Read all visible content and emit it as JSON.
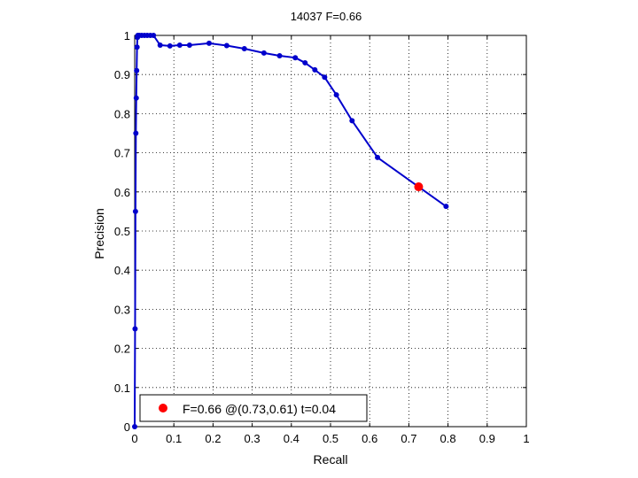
{
  "chart_data": {
    "type": "line",
    "title": "14037 F=0.66",
    "xlabel": "Recall",
    "ylabel": "Precision",
    "xlim": [
      0,
      1
    ],
    "ylim": [
      0,
      1
    ],
    "xticks": [
      "0",
      "0.1",
      "0.2",
      "0.3",
      "0.4",
      "0.5",
      "0.6",
      "0.7",
      "0.8",
      "0.9",
      "1"
    ],
    "yticks": [
      "0",
      "0.1",
      "0.2",
      "0.3",
      "0.4",
      "0.5",
      "0.6",
      "0.7",
      "0.8",
      "0.9",
      "1"
    ],
    "grid": true,
    "grid_style": "dotted",
    "series": [
      {
        "color": "#0000cc",
        "x": [
          0.0,
          0.001,
          0.002,
          0.003,
          0.004,
          0.005,
          0.006,
          0.007,
          0.008,
          0.012,
          0.018,
          0.025,
          0.032,
          0.04,
          0.048,
          0.065,
          0.09,
          0.115,
          0.14,
          0.19,
          0.235,
          0.28,
          0.33,
          0.37,
          0.41,
          0.435,
          0.46,
          0.485,
          0.515,
          0.555,
          0.62,
          0.795
        ],
        "y": [
          0.0,
          0.25,
          0.55,
          0.75,
          0.84,
          0.91,
          0.97,
          0.995,
          1.0,
          1.0,
          1.0,
          1.0,
          1.0,
          1.0,
          1.0,
          0.975,
          0.973,
          0.975,
          0.975,
          0.98,
          0.974,
          0.966,
          0.955,
          0.948,
          0.943,
          0.93,
          0.912,
          0.893,
          0.848,
          0.782,
          0.688,
          0.563
        ]
      }
    ],
    "highlight": {
      "x": 0.725,
      "y": 0.613,
      "color": "#ff0000"
    },
    "legend": {
      "placement": "bottom-left",
      "label": "F=0.66 @(0.73,0.61) t=0.04",
      "marker_color": "#ff0000"
    }
  }
}
